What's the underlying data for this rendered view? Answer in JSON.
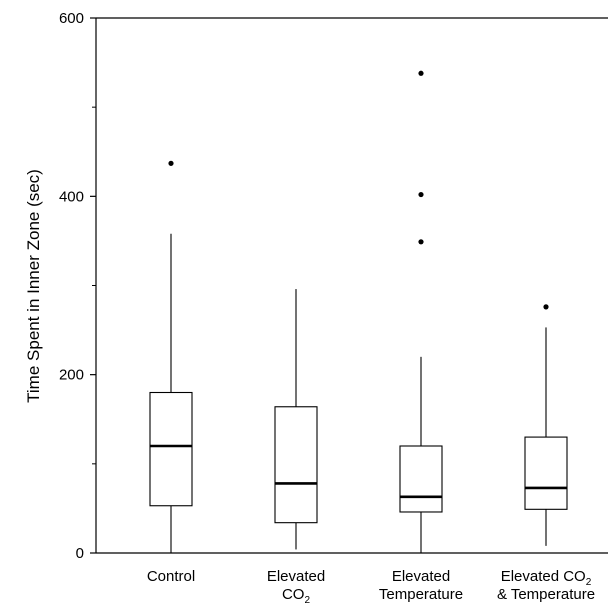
{
  "chart_data": {
    "type": "boxplot",
    "title": "",
    "xlabel": "",
    "ylabel": "Time Spent in Inner Zone (sec)",
    "ylim": [
      0,
      600
    ],
    "yticks": [
      {
        "value": 0,
        "label": "0"
      },
      {
        "value": 200,
        "label": "200"
      },
      {
        "value": 400,
        "label": "400"
      },
      {
        "value": 600,
        "label": "600"
      }
    ],
    "categories": [
      {
        "line1": "Control",
        "line2": "",
        "line2_sub": ""
      },
      {
        "line1": "Elevated",
        "line2": "CO",
        "line2_sub": "2"
      },
      {
        "line1": "Elevated",
        "line2": "Temperature",
        "line2_sub": ""
      },
      {
        "line1": "Elevated CO",
        "line1_sub": "2",
        "line2": "& Temperature",
        "line2_sub": ""
      }
    ],
    "boxes": [
      {
        "whisker_low": 0,
        "q1": 53,
        "median": 120,
        "q3": 180,
        "whisker_high": 358,
        "outliers": [
          437
        ]
      },
      {
        "whisker_low": 4,
        "q1": 34,
        "median": 78,
        "q3": 164,
        "whisker_high": 296,
        "outliers": []
      },
      {
        "whisker_low": 0,
        "q1": 46,
        "median": 63,
        "q3": 120,
        "whisker_high": 220,
        "outliers": [
          349,
          402,
          538
        ]
      },
      {
        "whisker_low": 8,
        "q1": 49,
        "median": 73,
        "q3": 130,
        "whisker_high": 253,
        "outliers": [
          276
        ]
      }
    ],
    "grid": false,
    "legend": "none"
  }
}
